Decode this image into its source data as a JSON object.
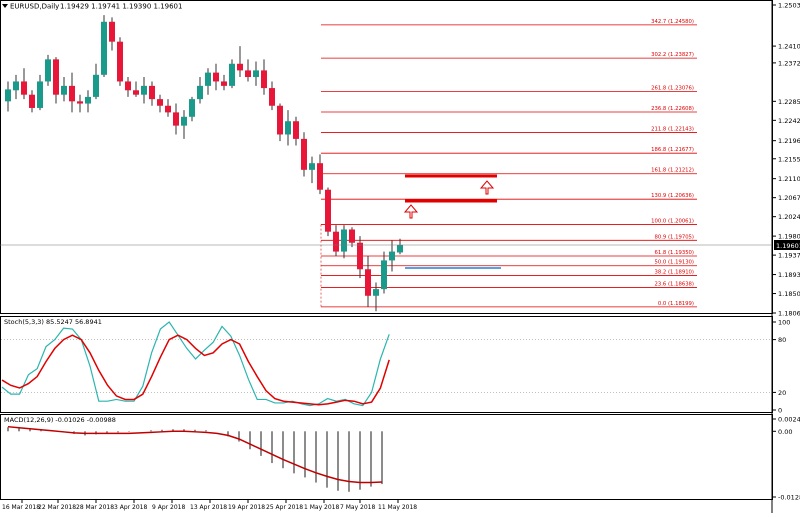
{
  "header": {
    "symbol_text": "EURUSD,Daily",
    "ohlc_text": "1.19429 1.19741 1.19390 1.19601"
  },
  "price_panel": {
    "current_price_label": "1.19601",
    "ticks": [
      "1.25030",
      "1.24100",
      "1.23720",
      "1.22850",
      "1.22420",
      "1.21960",
      "1.21550",
      "1.21100",
      "1.20670",
      "1.20240",
      "1.19800",
      "1.19370",
      "1.18930",
      "1.18500",
      "1.18060"
    ]
  },
  "stoch_panel": {
    "title": "Stoch(5,3,3) 85.5247 56.8941",
    "ticks": [
      "100",
      "80",
      "20",
      "0"
    ],
    "main_color": "#2bb5b0",
    "signal_color": "#e00000"
  },
  "macd_panel": {
    "title": "MACD(12,26,9) -0.01026 -0.00988",
    "ticks": [
      "0.0024",
      "0.00",
      "-0.01282"
    ],
    "signal_color": "#c00000",
    "hist_color": "#707070"
  },
  "x_axis": {
    "ticks": [
      "16 Mar 2018",
      "22 Mar 2018",
      "28 Mar 2018",
      "3 Apr 2018",
      "9 Apr 2018",
      "13 Apr 2018",
      "19 Apr 2018",
      "25 Apr 2018",
      "1 May 2018",
      "7 May 2018",
      "11 May 2018"
    ]
  },
  "fib_levels": [
    {
      "label": "342.7 (1.24580)",
      "price": 1.2458
    },
    {
      "label": "302.2 (1.23827)",
      "price": 1.23827
    },
    {
      "label": "261.8 (1.23076)",
      "price": 1.23076
    },
    {
      "label": "236.8 (1.22608)",
      "price": 1.22608
    },
    {
      "label": "211.8 (1.22143)",
      "price": 1.22143
    },
    {
      "label": "186.8 (1.21677)",
      "price": 1.21677
    },
    {
      "label": "161.8 (1.21212)",
      "price": 1.21212
    },
    {
      "label": "130.9 (1.20636)",
      "price": 1.20636
    },
    {
      "label": "100.0 (1.20061)",
      "price": 1.20061
    },
    {
      "label": "80.9 (1.19705)",
      "price": 1.19705
    },
    {
      "label": "61.8 (1.19350)",
      "price": 1.1935
    },
    {
      "label": "50.0 (1.19130)",
      "price": 1.1913
    },
    {
      "label": "38.2 (1.18910)",
      "price": 1.1891
    },
    {
      "label": "23.6 (1.18638)",
      "price": 1.18638
    },
    {
      "label": "0.0 (1.18199)",
      "price": 1.18199
    }
  ],
  "colors": {
    "bull": "#1a9a8a",
    "bear": "#e8173a",
    "fib": "#e00000",
    "support": "#5aa0dc",
    "arrow": "#e00000",
    "current_bg": "#000000"
  },
  "chart_data": {
    "type": "candlestick",
    "series": [
      {
        "name": "EURUSD,Daily",
        "candles": [
          [
            1.2285,
            1.233,
            1.2262,
            1.2312
          ],
          [
            1.231,
            1.2345,
            1.229,
            1.233
          ],
          [
            1.233,
            1.236,
            1.229,
            1.23
          ],
          [
            1.23,
            1.231,
            1.226,
            1.227
          ],
          [
            1.227,
            1.2345,
            1.2265,
            1.233
          ],
          [
            1.233,
            1.239,
            1.232,
            1.238
          ],
          [
            1.238,
            1.2385,
            1.228,
            1.23
          ],
          [
            1.23,
            1.234,
            1.2285,
            1.232
          ],
          [
            1.232,
            1.235,
            1.226,
            1.2285
          ],
          [
            1.2285,
            1.23,
            1.226,
            1.228
          ],
          [
            1.228,
            1.231,
            1.226,
            1.2295
          ],
          [
            1.2295,
            1.237,
            1.229,
            1.2345
          ],
          [
            1.2345,
            1.248,
            1.234,
            1.2465
          ],
          [
            1.2465,
            1.2475,
            1.24,
            1.242
          ],
          [
            1.242,
            1.243,
            1.232,
            1.233
          ],
          [
            1.233,
            1.234,
            1.2295,
            1.231
          ],
          [
            1.231,
            1.233,
            1.2295,
            1.23
          ],
          [
            1.23,
            1.234,
            1.228,
            1.232
          ],
          [
            1.232,
            1.233,
            1.2275,
            1.229
          ],
          [
            1.229,
            1.23,
            1.226,
            1.2275
          ],
          [
            1.2275,
            1.229,
            1.225,
            1.226
          ],
          [
            1.226,
            1.228,
            1.221,
            1.223
          ],
          [
            1.223,
            1.2265,
            1.22,
            1.225
          ],
          [
            1.225,
            1.2295,
            1.224,
            1.229
          ],
          [
            1.229,
            1.234,
            1.228,
            1.232
          ],
          [
            1.232,
            1.236,
            1.23,
            1.235
          ],
          [
            1.235,
            1.237,
            1.231,
            1.233
          ],
          [
            1.233,
            1.2345,
            1.231,
            1.232
          ],
          [
            1.232,
            1.238,
            1.2315,
            1.237
          ],
          [
            1.237,
            1.241,
            1.234,
            1.2355
          ],
          [
            1.2355,
            1.238,
            1.233,
            1.234
          ],
          [
            1.234,
            1.2375,
            1.232,
            1.2355
          ],
          [
            1.2355,
            1.238,
            1.23,
            1.2315
          ],
          [
            1.2315,
            1.233,
            1.2265,
            1.2275
          ],
          [
            1.2275,
            1.228,
            1.2195,
            1.221
          ],
          [
            1.221,
            1.2265,
            1.2185,
            1.224
          ],
          [
            1.224,
            1.225,
            1.2185,
            1.22
          ],
          [
            1.22,
            1.2215,
            1.2115,
            1.213
          ],
          [
            1.213,
            1.216,
            1.21,
            1.2145
          ],
          [
            1.2145,
            1.2165,
            1.2075,
            1.2085
          ],
          [
            1.2085,
            1.209,
            1.198,
            1.199
          ],
          [
            1.199,
            1.2005,
            1.1935,
            1.1945
          ],
          [
            1.1945,
            1.2005,
            1.193,
            1.1995
          ],
          [
            1.1995,
            1.2,
            1.1955,
            1.1965
          ],
          [
            1.1965,
            1.198,
            1.1885,
            1.1905
          ],
          [
            1.1905,
            1.1935,
            1.182,
            1.1845
          ],
          [
            1.1845,
            1.1875,
            1.181,
            1.186
          ],
          [
            1.186,
            1.1945,
            1.185,
            1.1925
          ],
          [
            1.1925,
            1.197,
            1.19,
            1.1945
          ],
          [
            1.1943,
            1.1974,
            1.1939,
            1.196
          ]
        ]
      }
    ],
    "stoch_main": [
      26,
      18,
      18,
      40,
      47,
      72,
      80,
      93,
      92,
      80,
      50,
      10,
      10,
      12,
      10,
      10,
      27,
      65,
      92,
      100,
      85,
      70,
      58,
      68,
      77,
      95,
      84,
      62,
      35,
      12,
      12,
      8,
      8,
      10,
      7,
      5,
      7,
      13,
      10,
      12,
      7,
      5,
      20,
      58,
      86
    ],
    "stoch_signal": [
      34,
      28,
      25,
      30,
      38,
      55,
      70,
      80,
      85,
      80,
      65,
      45,
      28,
      16,
      12,
      12,
      18,
      38,
      60,
      80,
      85,
      80,
      70,
      62,
      65,
      75,
      80,
      75,
      55,
      38,
      22,
      13,
      10,
      9,
      8,
      7,
      6,
      7,
      9,
      11,
      10,
      7,
      9,
      25,
      57
    ],
    "macd_hist": [
      0.0008,
      0.0006,
      0.0004,
      0.0002,
      0.0,
      -0.0002,
      -0.0005,
      -0.0008,
      -0.0006,
      -0.0003,
      -0.0002,
      -0.0001,
      0.0,
      0.0002,
      0.0003,
      0.0004,
      0.0004,
      0.0003,
      0.0002,
      0.0,
      -0.001,
      -0.002,
      -0.0035,
      -0.0048,
      -0.0062,
      -0.0072,
      -0.0082,
      -0.009,
      -0.01,
      -0.011,
      -0.0116,
      -0.0118,
      -0.0114,
      -0.0108,
      -0.0103
    ],
    "macd_signal": [
      0.0009,
      0.0007,
      0.0005,
      0.0003,
      0.0001,
      -0.0001,
      -0.0003,
      -0.0004,
      -0.0004,
      -0.0004,
      -0.0004,
      -0.0004,
      -0.0003,
      -0.0002,
      -0.0001,
      0.0,
      0.0,
      -0.0001,
      -0.0002,
      -0.0004,
      -0.0008,
      -0.0015,
      -0.0025,
      -0.0035,
      -0.0045,
      -0.0055,
      -0.0064,
      -0.0073,
      -0.0081,
      -0.0088,
      -0.0094,
      -0.0098,
      -0.01,
      -0.01,
      -0.0099
    ],
    "price_range": [
      1.1806,
      1.2503
    ],
    "stoch_range": [
      0,
      100
    ],
    "macd_range": [
      -0.01282,
      0.0024
    ],
    "grid": false
  }
}
